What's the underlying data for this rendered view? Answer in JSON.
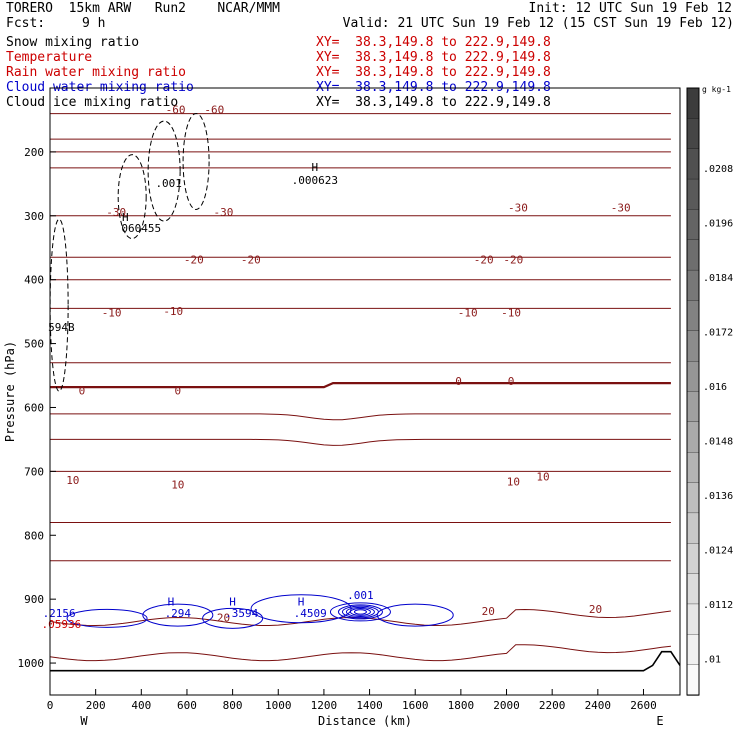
{
  "header": {
    "model": "TORERO  15km ARW   Run2    NCAR/MMM",
    "init": "Init: 12 UTC Sun 19 Feb 12",
    "fcst_label": "Fcst:",
    "fcst_value": "9 h",
    "valid": "Valid: 21 UTC Sun 19 Feb 12 (15 CST Sun 19 Feb 12)"
  },
  "fields": [
    {
      "name": "Snow mixing ratio",
      "xy": "XY=  38.3,149.8 to 222.9,149.8",
      "color": "#000000",
      "xy_color": "#cc0000"
    },
    {
      "name": "Temperature",
      "xy": "XY=  38.3,149.8 to 222.9,149.8",
      "color": "#cc0000",
      "xy_color": "#cc0000"
    },
    {
      "name": "Rain water mixing ratio",
      "xy": "XY=  38.3,149.8 to 222.9,149.8",
      "color": "#cc0000",
      "xy_color": "#cc0000"
    },
    {
      "name": "Cloud water mixing ratio",
      "xy": "XY=  38.3,149.8 to 222.9,149.8",
      "color": "#0000cc",
      "xy_color": "#0000cc"
    },
    {
      "name": "Cloud ice mixing ratio",
      "xy": "XY=  38.3,149.8 to 222.9,149.8",
      "color": "#000000",
      "xy_color": "#000000"
    }
  ],
  "chart_data": {
    "type": "contour-cross-section",
    "xlabel": "Distance (km)",
    "ylabel": "Pressure (hPa)",
    "xlim": [
      0,
      2760
    ],
    "ylim": [
      1050,
      100
    ],
    "x_ticks": [
      0,
      200,
      400,
      600,
      800,
      1000,
      1200,
      1400,
      1600,
      1800,
      2000,
      2200,
      2400,
      2600
    ],
    "y_ticks": [
      200,
      300,
      400,
      500,
      600,
      700,
      800,
      900,
      1000
    ],
    "end_labels": {
      "left": "W",
      "right": "E"
    },
    "colorbar": {
      "unit": "g kg-1",
      "ticks": [
        ".0208",
        ".0196",
        ".0184",
        ".0172",
        ".016",
        ".0148",
        ".0136",
        ".0124",
        ".0112",
        ".01"
      ]
    },
    "isotherms_celsius": [
      {
        "t": -60,
        "p": 140
      },
      {
        "t": null,
        "p": 180
      },
      {
        "t": null,
        "p": 200
      },
      {
        "t": null,
        "p": 225
      },
      {
        "t": -30,
        "p": 300
      },
      {
        "t": -20,
        "p": 365
      },
      {
        "t": null,
        "p": 400
      },
      {
        "t": -10,
        "p": 445
      },
      {
        "t": null,
        "p": 530
      },
      {
        "t": 0,
        "p": 565
      },
      {
        "t": null,
        "p": 610
      },
      {
        "t": null,
        "p": 650
      },
      {
        "t": 10,
        "p": 700
      },
      {
        "t": null,
        "p": 780
      },
      {
        "t": null,
        "p": 840
      },
      {
        "t": 20,
        "p": 935
      },
      {
        "t": null,
        "p": 990
      }
    ],
    "annotations": [
      {
        "text": "-60",
        "x": 550,
        "p": 140,
        "color": "#8b1a1a"
      },
      {
        "text": "-60",
        "x": 720,
        "p": 140,
        "color": "#8b1a1a"
      },
      {
        "text": "-30",
        "x": 290,
        "p": 300,
        "color": "#8b1a1a"
      },
      {
        "text": "-30",
        "x": 760,
        "p": 300,
        "color": "#8b1a1a"
      },
      {
        "text": "-30",
        "x": 2050,
        "p": 293,
        "color": "#8b1a1a"
      },
      {
        "text": "-30",
        "x": 2500,
        "p": 293,
        "color": "#8b1a1a"
      },
      {
        "text": "-20",
        "x": 630,
        "p": 375,
        "color": "#8b1a1a"
      },
      {
        "text": "-20",
        "x": 880,
        "p": 375,
        "color": "#8b1a1a"
      },
      {
        "text": "-20",
        "x": 1900,
        "p": 375,
        "color": "#8b1a1a"
      },
      {
        "text": "-20",
        "x": 2030,
        "p": 375,
        "color": "#8b1a1a"
      },
      {
        "text": "-10",
        "x": 270,
        "p": 458,
        "color": "#8b1a1a"
      },
      {
        "text": "-10",
        "x": 540,
        "p": 455,
        "color": "#8b1a1a"
      },
      {
        "text": "-10",
        "x": 1830,
        "p": 458,
        "color": "#8b1a1a"
      },
      {
        "text": "-10",
        "x": 2020,
        "p": 458,
        "color": "#8b1a1a"
      },
      {
        "text": "0",
        "x": 140,
        "p": 580,
        "color": "#8b1a1a"
      },
      {
        "text": "0",
        "x": 560,
        "p": 580,
        "color": "#8b1a1a"
      },
      {
        "text": "0",
        "x": 1790,
        "p": 565,
        "color": "#8b1a1a"
      },
      {
        "text": "0",
        "x": 2020,
        "p": 565,
        "color": "#8b1a1a"
      },
      {
        "text": "10",
        "x": 100,
        "p": 720,
        "color": "#8b1a1a"
      },
      {
        "text": "10",
        "x": 560,
        "p": 727,
        "color": "#8b1a1a"
      },
      {
        "text": "10",
        "x": 2030,
        "p": 722,
        "color": "#8b1a1a"
      },
      {
        "text": "10",
        "x": 2160,
        "p": 714,
        "color": "#8b1a1a"
      },
      {
        "text": "20",
        "x": 760,
        "p": 935,
        "color": "#8b1a1a"
      },
      {
        "text": "20",
        "x": 1920,
        "p": 925,
        "color": "#8b1a1a"
      },
      {
        "text": "20",
        "x": 2390,
        "p": 922,
        "color": "#8b1a1a"
      },
      {
        "text": "H",
        "x": 1160,
        "p": 230,
        "color": "#000000"
      },
      {
        "text": ".000623",
        "x": 1160,
        "p": 250,
        "color": "#000000"
      },
      {
        "text": ".001",
        "x": 520,
        "p": 255,
        "color": "#000000"
      },
      {
        "text": "H",
        "x": 330,
        "p": 308,
        "color": "#000000"
      },
      {
        "text": "060455",
        "x": 400,
        "p": 325,
        "color": "#000000"
      },
      {
        "text": "594B",
        "x": 50,
        "p": 480,
        "color": "#000000"
      },
      {
        "text": "H",
        "x": 530,
        "p": 910,
        "color": "#0000cc"
      },
      {
        "text": ".294",
        "x": 560,
        "p": 928,
        "color": "#0000cc"
      },
      {
        "text": "H",
        "x": 800,
        "p": 910,
        "color": "#0000cc"
      },
      {
        "text": ".3594",
        "x": 840,
        "p": 928,
        "color": "#0000cc"
      },
      {
        "text": "H",
        "x": 1100,
        "p": 910,
        "color": "#0000cc"
      },
      {
        "text": ".4509",
        "x": 1140,
        "p": 928,
        "color": "#0000cc"
      },
      {
        "text": ".001",
        "x": 1360,
        "p": 900,
        "color": "#0000cc"
      },
      {
        "text": ".2156",
        "x": 40,
        "p": 928,
        "color": "#0000cc"
      },
      {
        "text": ".05936",
        "x": 50,
        "p": 945,
        "color": "#cc0000"
      }
    ]
  }
}
